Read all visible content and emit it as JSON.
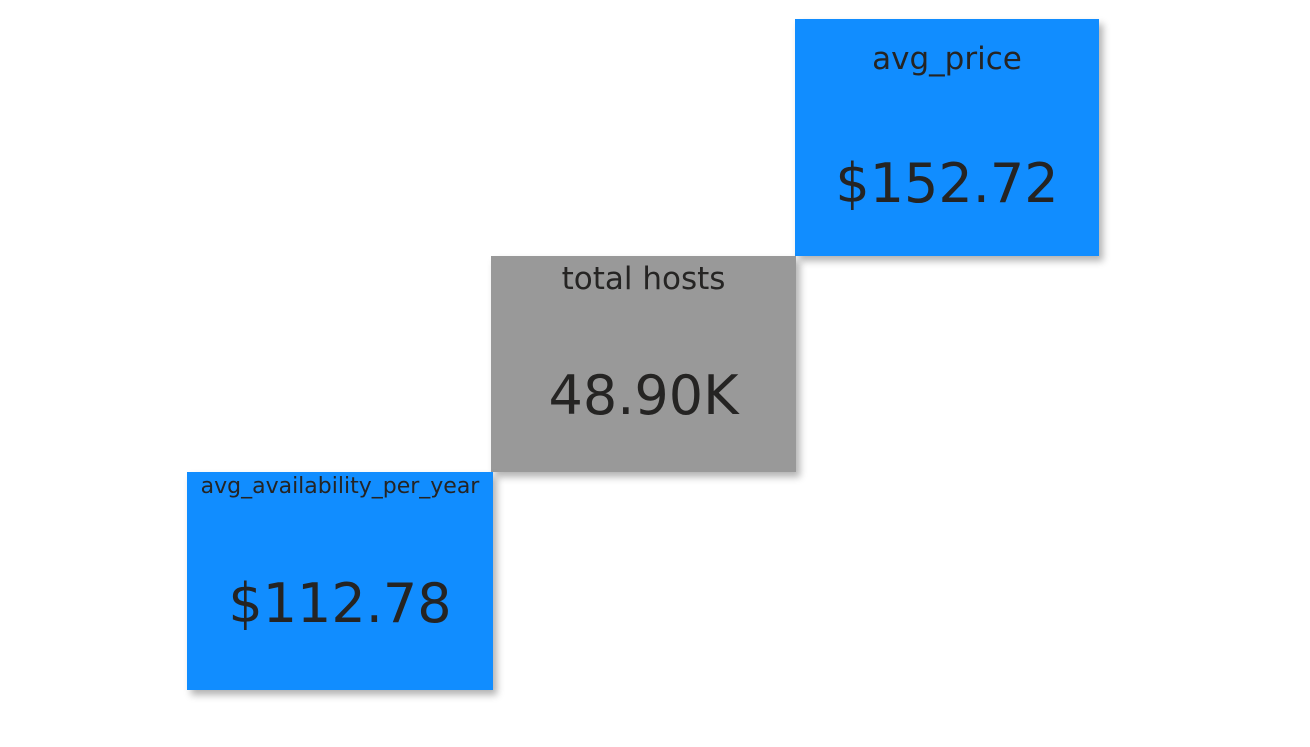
{
  "cards": [
    {
      "label": "avg_price",
      "value": "$152.72",
      "background": "#118DFF"
    },
    {
      "label": "total hosts",
      "value": "48.90K",
      "background": "#999999"
    },
    {
      "label": "avg_availability_per_year",
      "value": "$112.78",
      "background": "#118DFF"
    }
  ],
  "colors": {
    "page_background": "#FFFFFF",
    "text": "#252423"
  }
}
